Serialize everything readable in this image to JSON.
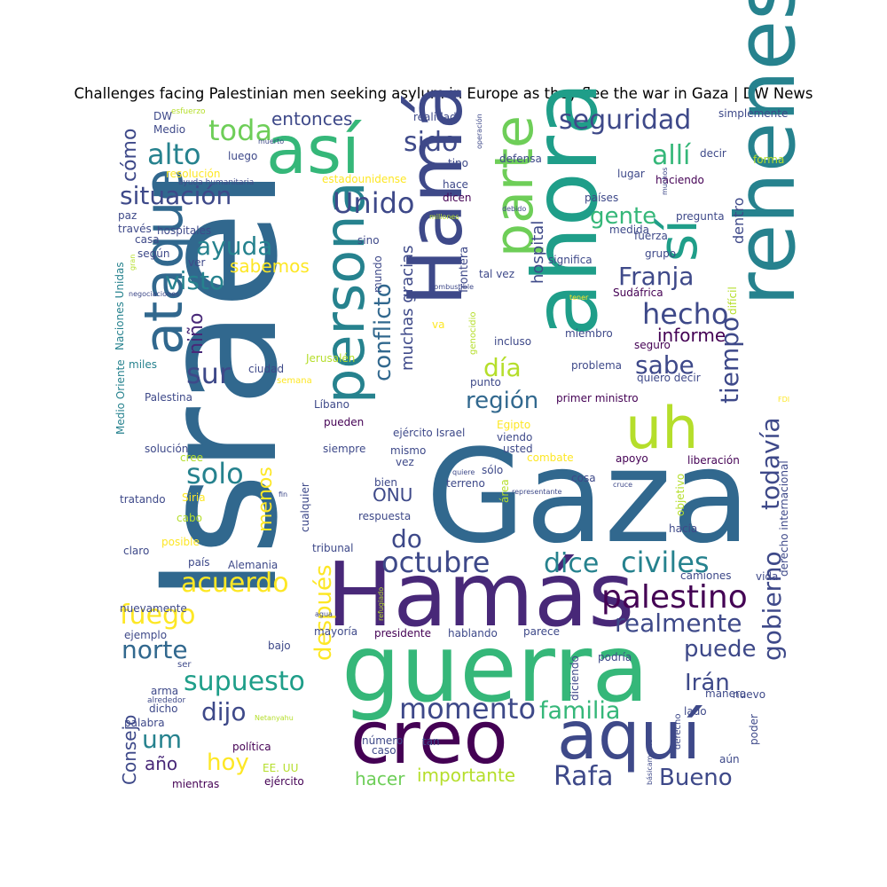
{
  "title": "Challenges facing Palestinian men seeking asylum in Europe as they flee the war in Gaza  | DW News",
  "palette": [
    "#440154",
    "#482878",
    "#3e4989",
    "#31688e",
    "#26828e",
    "#1f9e89",
    "#35b779",
    "#6ece58",
    "#b5de2b",
    "#fde725"
  ],
  "words": [
    {
      "text": "Israel",
      "color": "#31688e"
    },
    {
      "text": "Gaza",
      "color": "#31688e"
    },
    {
      "text": "guerra",
      "color": "#35b779"
    },
    {
      "text": "Hamás",
      "color": "#482878"
    },
    {
      "text": "ahora",
      "color": "#1f9e89"
    },
    {
      "text": "rehenes",
      "color": "#26828e"
    },
    {
      "text": "creo",
      "color": "#440154"
    },
    {
      "text": "aquí",
      "color": "#3e4989"
    },
    {
      "text": "Hamá",
      "color": "#3e4989"
    },
    {
      "text": "así",
      "color": "#35b779"
    },
    {
      "text": "persona",
      "color": "#26828e"
    },
    {
      "text": "parte",
      "color": "#6ece58"
    },
    {
      "text": "ataque",
      "color": "#31688e"
    },
    {
      "text": "uh",
      "color": "#b5de2b"
    },
    {
      "text": "sí",
      "color": "#1f9e89"
    },
    {
      "text": "palestino",
      "color": "#440154"
    },
    {
      "text": "octubre",
      "color": "#3e4989"
    },
    {
      "text": "momento",
      "color": "#3e4989"
    },
    {
      "text": "seguridad",
      "color": "#3e4989"
    },
    {
      "text": "situación",
      "color": "#3e4989"
    },
    {
      "text": "realmente",
      "color": "#3e4989"
    },
    {
      "text": "civiles",
      "color": "#26828e"
    },
    {
      "text": "conflicto",
      "color": "#31688e"
    },
    {
      "text": "familia",
      "color": "#35b779"
    },
    {
      "text": "supuesto",
      "color": "#1f9e89"
    },
    {
      "text": "después",
      "color": "#fde725"
    },
    {
      "text": "acuerdo",
      "color": "#fde725"
    },
    {
      "text": "toda",
      "color": "#6ece58"
    },
    {
      "text": "alto",
      "color": "#26828e"
    },
    {
      "text": "Unido",
      "color": "#3e4989"
    },
    {
      "text": "sido",
      "color": "#3e4989"
    },
    {
      "text": "allí",
      "color": "#35b779"
    },
    {
      "text": "gente",
      "color": "#35b779"
    },
    {
      "text": "Franja",
      "color": "#3e4989"
    },
    {
      "text": "hecho",
      "color": "#3e4989"
    },
    {
      "text": "sabe",
      "color": "#3e4989"
    },
    {
      "text": "día",
      "color": "#b5de2b"
    },
    {
      "text": "región",
      "color": "#31688e"
    },
    {
      "text": "tiempo",
      "color": "#3e4989"
    },
    {
      "text": "todavía",
      "color": "#3e4989"
    },
    {
      "text": "gobierno",
      "color": "#3e4989"
    },
    {
      "text": "puede",
      "color": "#3e4989"
    },
    {
      "text": "Irán",
      "color": "#3e4989"
    },
    {
      "text": "Rafa",
      "color": "#3e4989"
    },
    {
      "text": "Bueno",
      "color": "#3e4989"
    },
    {
      "text": "dice",
      "color": "#26828e"
    },
    {
      "text": "do",
      "color": "#3e4989"
    },
    {
      "text": "ayuda",
      "color": "#26828e"
    },
    {
      "text": "visto",
      "color": "#26828e"
    },
    {
      "text": "sur",
      "color": "#3e4989"
    },
    {
      "text": "solo",
      "color": "#26828e"
    },
    {
      "text": "fuego",
      "color": "#fde725"
    },
    {
      "text": "norte",
      "color": "#31688e"
    },
    {
      "text": "dijo",
      "color": "#3e4989"
    },
    {
      "text": "um",
      "color": "#26828e"
    },
    {
      "text": "hoy",
      "color": "#fde725"
    },
    {
      "text": "año",
      "color": "#482878"
    },
    {
      "text": "Consejo",
      "color": "#3e4989"
    },
    {
      "text": "cómo",
      "color": "#3e4989"
    },
    {
      "text": "niño",
      "color": "#482878"
    },
    {
      "text": "menos",
      "color": "#fde725"
    },
    {
      "text": "sabemos",
      "color": "#fde725"
    },
    {
      "text": "entonces",
      "color": "#3e4989"
    },
    {
      "text": "muchas gracias",
      "color": "#3e4989"
    },
    {
      "text": "ONU",
      "color": "#3e4989"
    },
    {
      "text": "informe",
      "color": "#440154"
    },
    {
      "text": "importante",
      "color": "#b5de2b"
    },
    {
      "text": "hacer",
      "color": "#6ece58"
    },
    {
      "text": "hospital",
      "color": "#3e4989"
    },
    {
      "text": "dentro",
      "color": "#3e4989"
    },
    {
      "text": "DW",
      "color": "#3e4989"
    },
    {
      "text": "esfuerzo",
      "color": "#b5de2b"
    },
    {
      "text": "Medio",
      "color": "#3e4989"
    },
    {
      "text": "muerto",
      "color": "#3e4989"
    },
    {
      "text": "luego",
      "color": "#3e4989"
    },
    {
      "text": "resolución",
      "color": "#fde725"
    },
    {
      "text": "ayuda humanitaria",
      "color": "#3e4989"
    },
    {
      "text": "estadounidense",
      "color": "#fde725"
    },
    {
      "text": "hace",
      "color": "#3e4989"
    },
    {
      "text": "dicen",
      "color": "#440154"
    },
    {
      "text": "defensa",
      "color": "#3e4989"
    },
    {
      "text": "tipo",
      "color": "#3e4989"
    },
    {
      "text": "realidad",
      "color": "#3e4989"
    },
    {
      "text": "operación",
      "color": "#3e4989"
    },
    {
      "text": "simplemente",
      "color": "#3e4989"
    },
    {
      "text": "decir",
      "color": "#3e4989"
    },
    {
      "text": "forma",
      "color": "#b5de2b"
    },
    {
      "text": "haciendo",
      "color": "#440154"
    },
    {
      "text": "lugar",
      "color": "#3e4989"
    },
    {
      "text": "países",
      "color": "#3e4989"
    },
    {
      "text": "pregunta",
      "color": "#3e4989"
    },
    {
      "text": "medida",
      "color": "#3e4989"
    },
    {
      "text": "fuerza",
      "color": "#3e4989"
    },
    {
      "text": "grupo",
      "color": "#3e4989"
    },
    {
      "text": "significa",
      "color": "#3e4989"
    },
    {
      "text": "Sudáfrica",
      "color": "#440154"
    },
    {
      "text": "difícil",
      "color": "#b5de2b"
    },
    {
      "text": "tener",
      "color": "#fde725"
    },
    {
      "text": "paz",
      "color": "#3e4989"
    },
    {
      "text": "través",
      "color": "#3e4989"
    },
    {
      "text": "hospitales",
      "color": "#3e4989"
    },
    {
      "text": "casa",
      "color": "#3e4989"
    },
    {
      "text": "según",
      "color": "#3e4989"
    },
    {
      "text": "ver",
      "color": "#3e4989"
    },
    {
      "text": "gran",
      "color": "#b5de2b"
    },
    {
      "text": "negociaciones",
      "color": "#3e4989"
    },
    {
      "text": "Naciones Unidas",
      "color": "#26828e"
    },
    {
      "text": "Medio Oriente",
      "color": "#26828e"
    },
    {
      "text": "miles",
      "color": "#26828e"
    },
    {
      "text": "Palestina",
      "color": "#3e4989"
    },
    {
      "text": "solución",
      "color": "#3e4989"
    },
    {
      "text": "cree",
      "color": "#b5de2b"
    },
    {
      "text": "Siria",
      "color": "#fde725"
    },
    {
      "text": "tratando",
      "color": "#3e4989"
    },
    {
      "text": "cabo",
      "color": "#b5de2b"
    },
    {
      "text": "posible",
      "color": "#fde725"
    },
    {
      "text": "claro",
      "color": "#3e4989"
    },
    {
      "text": "país",
      "color": "#3e4989"
    },
    {
      "text": "nuevamente",
      "color": "#3e4989"
    },
    {
      "text": "ejemplo",
      "color": "#3e4989"
    },
    {
      "text": "ser",
      "color": "#3e4989"
    },
    {
      "text": "arma",
      "color": "#3e4989"
    },
    {
      "text": "alrededor",
      "color": "#3e4989"
    },
    {
      "text": "dicho",
      "color": "#3e4989"
    },
    {
      "text": "palabra",
      "color": "#3e4989"
    },
    {
      "text": "mientras",
      "color": "#440154"
    },
    {
      "text": "ciudad",
      "color": "#3e4989"
    },
    {
      "text": "semana",
      "color": "#fde725"
    },
    {
      "text": "Jerusalén",
      "color": "#b5de2b"
    },
    {
      "text": "mundo",
      "color": "#3e4989"
    },
    {
      "text": "sino",
      "color": "#3e4989"
    },
    {
      "text": "millones",
      "color": "#b5de2b"
    },
    {
      "text": "frontera",
      "color": "#3e4989"
    },
    {
      "text": "tal vez",
      "color": "#3e4989"
    },
    {
      "text": "combustible",
      "color": "#3e4989"
    },
    {
      "text": "va",
      "color": "#fde725"
    },
    {
      "text": "genocidio",
      "color": "#b5de2b"
    },
    {
      "text": "incluso",
      "color": "#3e4989"
    },
    {
      "text": "miembro",
      "color": "#3e4989"
    },
    {
      "text": "seguro",
      "color": "#440154"
    },
    {
      "text": "problema",
      "color": "#3e4989"
    },
    {
      "text": "quiero decir",
      "color": "#3e4989"
    },
    {
      "text": "primer ministro",
      "color": "#440154"
    },
    {
      "text": "punto",
      "color": "#3e4989"
    },
    {
      "text": "Líbano",
      "color": "#3e4989"
    },
    {
      "text": "Egipto",
      "color": "#fde725"
    },
    {
      "text": "pueden",
      "color": "#440154"
    },
    {
      "text": "ejército Israel",
      "color": "#3e4989"
    },
    {
      "text": "viendo",
      "color": "#3e4989"
    },
    {
      "text": "siempre",
      "color": "#3e4989"
    },
    {
      "text": "mismo",
      "color": "#3e4989"
    },
    {
      "text": "vez",
      "color": "#3e4989"
    },
    {
      "text": "sólo",
      "color": "#3e4989"
    },
    {
      "text": "quiere",
      "color": "#3e4989"
    },
    {
      "text": "combate",
      "color": "#fde725"
    },
    {
      "text": "apoyo",
      "color": "#440154"
    },
    {
      "text": "objetivo",
      "color": "#b5de2b"
    },
    {
      "text": "liberación",
      "color": "#440154"
    },
    {
      "text": "derecho internacional",
      "color": "#3e4989"
    },
    {
      "text": "FDI",
      "color": "#fde725"
    },
    {
      "text": "bien",
      "color": "#3e4989"
    },
    {
      "text": "terreno",
      "color": "#3e4989"
    },
    {
      "text": "área",
      "color": "#b5de2b"
    },
    {
      "text": "representante",
      "color": "#3e4989"
    },
    {
      "text": "cosa",
      "color": "#3e4989"
    },
    {
      "text": "cruce",
      "color": "#3e4989"
    },
    {
      "text": "fin",
      "color": "#3e4989"
    },
    {
      "text": "cualquier",
      "color": "#3e4989"
    },
    {
      "text": "respuesta",
      "color": "#3e4989"
    },
    {
      "text": "tribunal",
      "color": "#3e4989"
    },
    {
      "text": "Alemania",
      "color": "#3e4989"
    },
    {
      "text": "hacía",
      "color": "#3e4989"
    },
    {
      "text": "camiones",
      "color": "#3e4989"
    },
    {
      "text": "vida",
      "color": "#3e4989"
    },
    {
      "text": "refugiado",
      "color": "#b5de2b"
    },
    {
      "text": "agua",
      "color": "#3e4989"
    },
    {
      "text": "mayoría",
      "color": "#3e4989"
    },
    {
      "text": "presidente",
      "color": "#440154"
    },
    {
      "text": "hablando",
      "color": "#3e4989"
    },
    {
      "text": "parece",
      "color": "#3e4989"
    },
    {
      "text": "bajo",
      "color": "#3e4989"
    },
    {
      "text": "podría",
      "color": "#3e4989"
    },
    {
      "text": "diciendo",
      "color": "#3e4989"
    },
    {
      "text": "manera",
      "color": "#3e4989"
    },
    {
      "text": "nuevo",
      "color": "#3e4989"
    },
    {
      "text": "lado",
      "color": "#3e4989"
    },
    {
      "text": "derecho",
      "color": "#3e4989"
    },
    {
      "text": "poder",
      "color": "#3e4989"
    },
    {
      "text": "Netanyahu",
      "color": "#b5de2b"
    },
    {
      "text": "política",
      "color": "#440154"
    },
    {
      "text": "EE. UU",
      "color": "#b5de2b"
    },
    {
      "text": "ejército",
      "color": "#440154"
    },
    {
      "text": "número",
      "color": "#3e4989"
    },
    {
      "text": "caso",
      "color": "#3e4989"
    },
    {
      "text": "tan",
      "color": "#3e4989"
    },
    {
      "text": "básicamente",
      "color": "#3e4989"
    },
    {
      "text": "aún",
      "color": "#3e4989"
    },
    {
      "text": "usted",
      "color": "#3e4989"
    },
    {
      "text": "debido",
      "color": "#3e4989"
    },
    {
      "text": "muchos",
      "color": "#3e4989"
    }
  ]
}
